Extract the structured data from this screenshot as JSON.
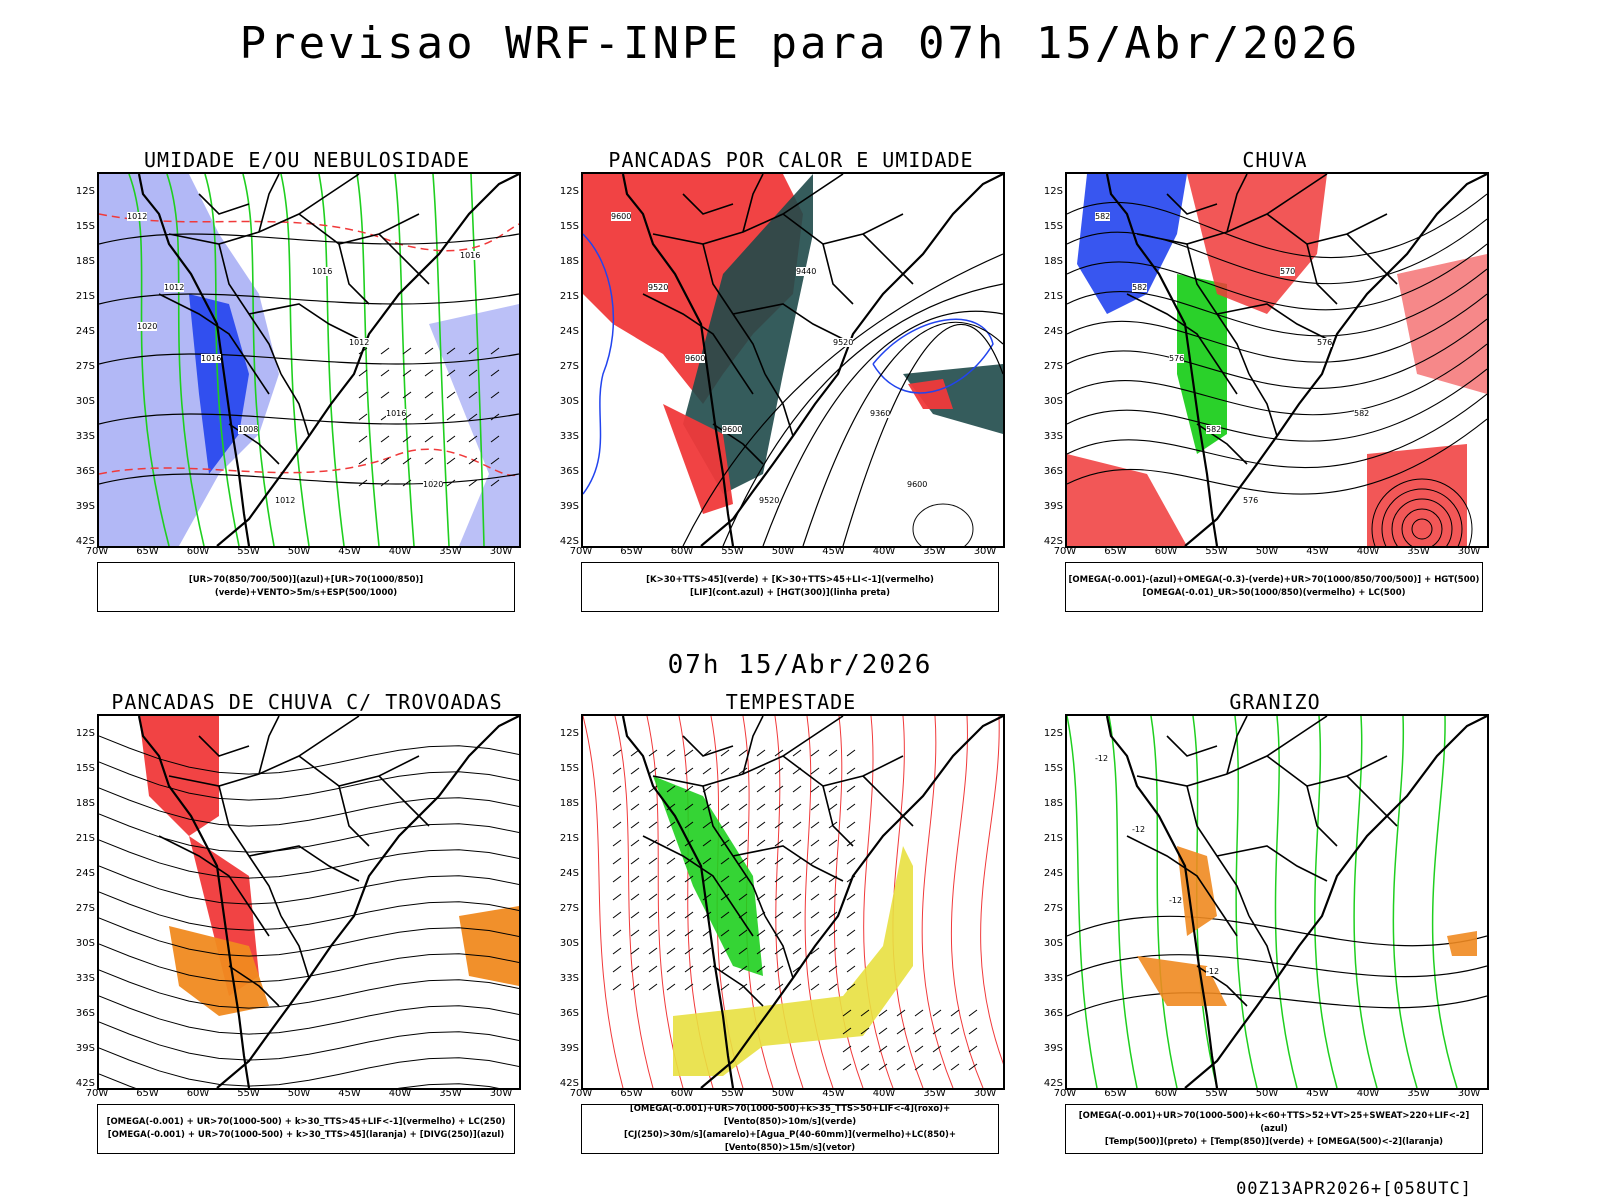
{
  "header": {
    "title": "Previsao WRF-INPE  para 07h 15/Abr/2026",
    "mid_title": "07h 15/Abr/2026",
    "footer": "00Z13APR2026+[058UTC]"
  },
  "axes": {
    "lat_labels": [
      "12S",
      "15S",
      "18S",
      "21S",
      "24S",
      "27S",
      "30S",
      "33S",
      "36S",
      "39S",
      "42S"
    ],
    "lon_labels": [
      "70W",
      "65W",
      "60W",
      "55W",
      "50W",
      "45W",
      "40W",
      "35W",
      "30W"
    ]
  },
  "panels": [
    {
      "title": "UMIDADE E/OU NEBULOSIDADE",
      "legend": [
        "[UR>70(850/700/500)](azul)+[UR>70(1000/850)](verde)+VENTO>5m/s+ESP(500/1000)"
      ],
      "contour_labels": [
        "1012",
        "1012",
        "1016",
        "1008",
        "1012",
        "1016",
        "1012",
        "1016",
        "1020",
        "1016",
        "1020"
      ]
    },
    {
      "title": "PANCADAS POR CALOR E UMIDADE",
      "legend": [
        "[K>30+TTS>45](verde) + [K>30+TTS>45+LI<-1](vermelho)",
        "[LIF](cont.azul) + [HGT(300)](linha preta)"
      ],
      "contour_labels": [
        "9600",
        "9520",
        "9600",
        "9600",
        "9520",
        "9440",
        "9520",
        "9360",
        "9600"
      ]
    },
    {
      "title": "CHUVA",
      "legend": [
        "[OMEGA(-0.001)-(azul)+OMEGA(-0.3)-(verde)+UR>70(1000/850/700/500)] + HGT(500)",
        "[OMEGA(-0.01)_UR>50(1000/850)(vermelho) + LC(500)"
      ],
      "contour_labels": [
        "582",
        "582",
        "576",
        "582",
        "576",
        "570",
        "576",
        "582"
      ]
    },
    {
      "title": "PANCADAS DE CHUVA C/ TROVOADAS",
      "legend": [
        "[OMEGA(-0.001) + UR>70(1000-500) + k>30_TTS>45+LIF<-1](vermelho) + LC(250)",
        "[OMEGA(-0.001) + UR>70(1000-500) + k>30_TTS>45](laranja) + [DIVG(250)](azul)"
      ],
      "contour_labels": []
    },
    {
      "title": "TEMPESTADE",
      "legend": [
        "[OMEGA(-0.001)+UR>70(1000-500)+k>35_TTS>50+LIF<-4](roxo)+[Vento(850)>10m/s](verde)",
        "[CJ(250)>30m/s](amarelo)+[Agua_P(40-60mm)](vermelho)+LC(850)+[Vento(850)>15m/s](vetor)"
      ],
      "contour_labels": []
    },
    {
      "title": "GRANIZO",
      "legend": [
        "[OMEGA(-0.001)+UR>70(1000-500)+k<60+TTS>52+VT>25+SWEAT>220+LIF<-2](azul)",
        "[Temp(500)](preto) + [Temp(850)](verde) + [OMEGA(500)<-2](laranja)"
      ],
      "contour_labels": [
        "-12",
        "-12",
        "-12",
        "-12"
      ]
    }
  ],
  "colors": {
    "red": "#f0393a",
    "green": "#1fcf1f",
    "blue": "#2244ee",
    "lightblue": "#aab0f5",
    "darkteal": "#1f4a4a",
    "yellow": "#e8e040",
    "orange": "#f08a20",
    "purple": "#a020f0"
  }
}
